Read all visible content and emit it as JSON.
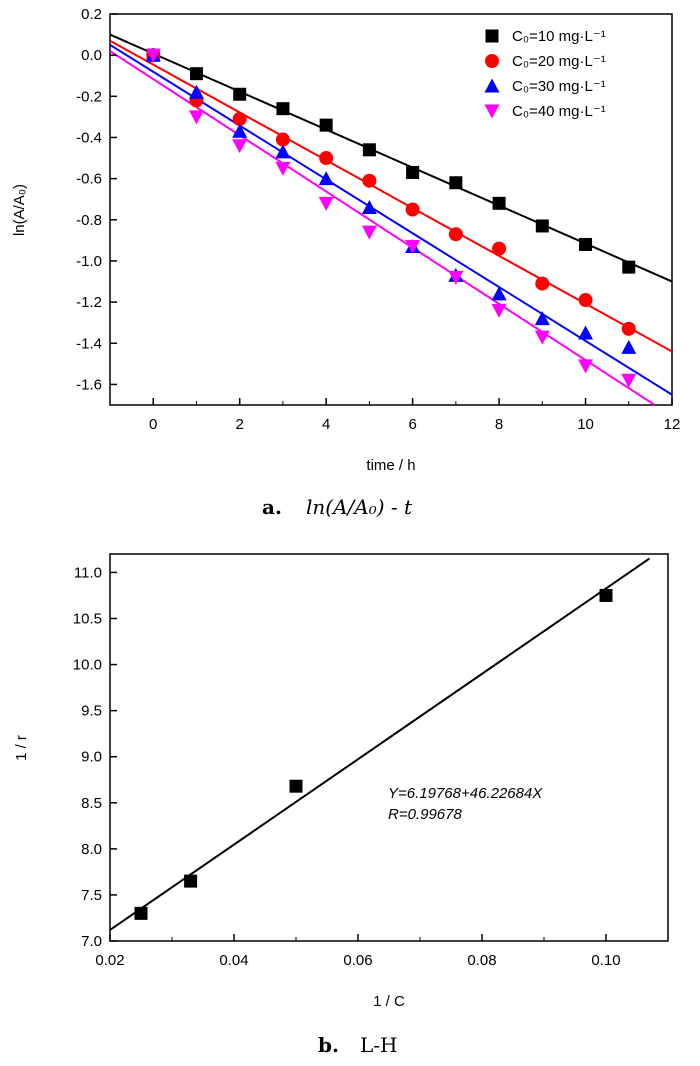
{
  "chart_data": [
    {
      "type": "scatter",
      "panel": "a",
      "caption_letter": "a.",
      "caption_text": "ln(A/A₀) - t",
      "xlabel": "time / h",
      "ylabel": "ln(A/A₀)",
      "xlim": [
        -1,
        12
      ],
      "ylim": [
        -1.7,
        0.2
      ],
      "xticks": [
        0,
        2,
        4,
        6,
        8,
        10,
        12
      ],
      "yticks": [
        0.2,
        0.0,
        -0.2,
        -0.4,
        -0.6,
        -0.8,
        -1.0,
        -1.2,
        -1.4,
        -1.6
      ],
      "ytick_labels": [
        "0.2",
        "0.0",
        "-0.2",
        "-0.4",
        "-0.6",
        "-0.8",
        "-1.0",
        "-1.2",
        "-1.4",
        "-1.6"
      ],
      "grid": false,
      "legend_position": "top-right",
      "series": [
        {
          "name": "C₀=10 mg·L⁻¹",
          "color": "#000000",
          "marker": "square",
          "x": [
            0,
            1,
            2,
            3,
            4,
            5,
            6,
            7,
            8,
            9,
            10,
            11
          ],
          "y": [
            0.0,
            -0.09,
            -0.19,
            -0.26,
            -0.34,
            -0.46,
            -0.57,
            -0.62,
            -0.72,
            -0.83,
            -0.92,
            -1.03
          ],
          "fit": [
            [
              -1,
              0.1
            ],
            [
              12,
              -1.1
            ]
          ]
        },
        {
          "name": "C₀=20 mg·L⁻¹",
          "color": "#ff0000",
          "marker": "circle",
          "x": [
            0,
            1,
            2,
            3,
            4,
            5,
            6,
            7,
            8,
            9,
            10,
            11
          ],
          "y": [
            0.0,
            -0.22,
            -0.31,
            -0.41,
            -0.5,
            -0.61,
            -0.75,
            -0.87,
            -0.94,
            -1.11,
            -1.19,
            -1.33
          ],
          "fit": [
            [
              -1,
              0.07
            ],
            [
              12,
              -1.44
            ]
          ]
        },
        {
          "name": "C₀=30 mg·L⁻¹",
          "color": "#0000ff",
          "marker": "triangle-up",
          "x": [
            0,
            1,
            2,
            3,
            4,
            5,
            6,
            7,
            8,
            9,
            10,
            11
          ],
          "y": [
            0.0,
            -0.18,
            -0.37,
            -0.47,
            -0.6,
            -0.74,
            -0.93,
            -1.07,
            -1.16,
            -1.28,
            -1.35,
            -1.42
          ],
          "fit": [
            [
              -1,
              0.05
            ],
            [
              12,
              -1.65
            ]
          ]
        },
        {
          "name": "C₀=40 mg·L⁻¹",
          "color": "#ff00ff",
          "marker": "triangle-down",
          "x": [
            0,
            1,
            2,
            3,
            4,
            5,
            6,
            7,
            8,
            9,
            10,
            11
          ],
          "y": [
            0.0,
            -0.3,
            -0.44,
            -0.55,
            -0.72,
            -0.86,
            -0.93,
            -1.08,
            -1.24,
            -1.37,
            -1.51,
            -1.58
          ],
          "fit": [
            [
              -1,
              0.02
            ],
            [
              11.6,
              -1.7
            ]
          ]
        }
      ]
    },
    {
      "type": "scatter",
      "panel": "b",
      "caption_letter": "b.",
      "caption_text": "L-H",
      "xlabel": "1 / C",
      "ylabel": "1 / r",
      "xlim": [
        0.02,
        0.11
      ],
      "ylim": [
        7.0,
        11.2
      ],
      "xticks": [
        0.02,
        0.04,
        0.06,
        0.08,
        0.1
      ],
      "xtick_labels": [
        "0.02",
        "0.04",
        "0.06",
        "0.08",
        "0.10"
      ],
      "yticks": [
        7.0,
        7.5,
        8.0,
        8.5,
        9.0,
        9.5,
        10.0,
        10.5,
        11.0
      ],
      "ytick_labels": [
        "7.0",
        "7.5",
        "8.0",
        "8.5",
        "9.0",
        "9.5",
        "10.0",
        "10.5",
        "11.0"
      ],
      "grid": false,
      "equation": "Y=6.19768+46.22684X",
      "r_value": "R=0.99678",
      "series": [
        {
          "color": "#000000",
          "marker": "square",
          "x": [
            0.025,
            0.033,
            0.05,
            0.1
          ],
          "y": [
            7.3,
            7.65,
            8.68,
            10.75
          ],
          "fit": [
            [
              0.02,
              7.12
            ],
            [
              0.107,
              11.15
            ]
          ]
        }
      ]
    }
  ]
}
